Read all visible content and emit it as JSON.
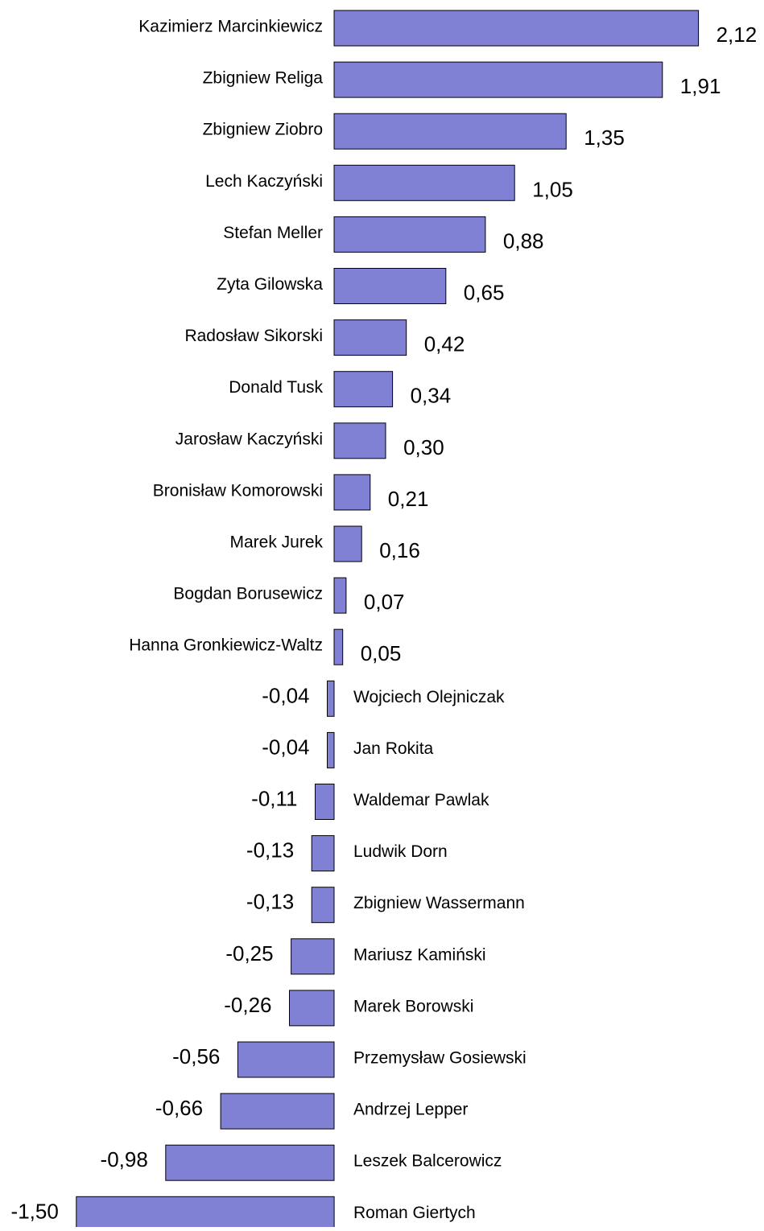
{
  "chart_data": {
    "type": "bar",
    "orientation": "horizontal",
    "bar_color": "#8080d4",
    "bar_border_color": "#000000",
    "categories": [
      "Kazimierz Marcinkiewicz",
      "Zbigniew Religa",
      "Zbigniew Ziobro",
      "Lech Kaczyński",
      "Stefan Meller",
      "Zyta Gilowska",
      "Radosław Sikorski",
      "Donald Tusk",
      "Jarosław Kaczyński",
      "Bronisław Komorowski",
      "Marek Jurek",
      "Bogdan Borusewicz",
      "Hanna Gronkiewicz-Waltz",
      "Wojciech Olejniczak",
      "Jan Rokita",
      "Waldemar Pawlak",
      "Ludwik Dorn",
      "Zbigniew Wassermann",
      "Mariusz Kamiński",
      "Marek Borowski",
      "Przemysław Gosiewski",
      "Andrzej Lepper",
      "Leszek Balcerowicz",
      "Roman Giertych"
    ],
    "values": [
      2.12,
      1.91,
      1.35,
      1.05,
      0.88,
      0.65,
      0.42,
      0.34,
      0.3,
      0.21,
      0.16,
      0.07,
      0.05,
      -0.04,
      -0.04,
      -0.11,
      -0.13,
      -0.13,
      -0.25,
      -0.26,
      -0.56,
      -0.66,
      -0.98,
      -1.5
    ],
    "value_labels": [
      "2,12",
      "1,91",
      "1,35",
      "1,05",
      "0,88",
      "0,65",
      "0,42",
      "0,34",
      "0,30",
      "0,21",
      "0,16",
      "0,07",
      "0,05",
      "-0,04",
      "-0,04",
      "-0,11",
      "-0,13",
      "-0,13",
      "-0,25",
      "-0,26",
      "-0,56",
      "-0,66",
      "-0,98",
      "-1,50"
    ],
    "xlim": [
      -1.5,
      2.12
    ],
    "grid": false,
    "legend": "none"
  }
}
